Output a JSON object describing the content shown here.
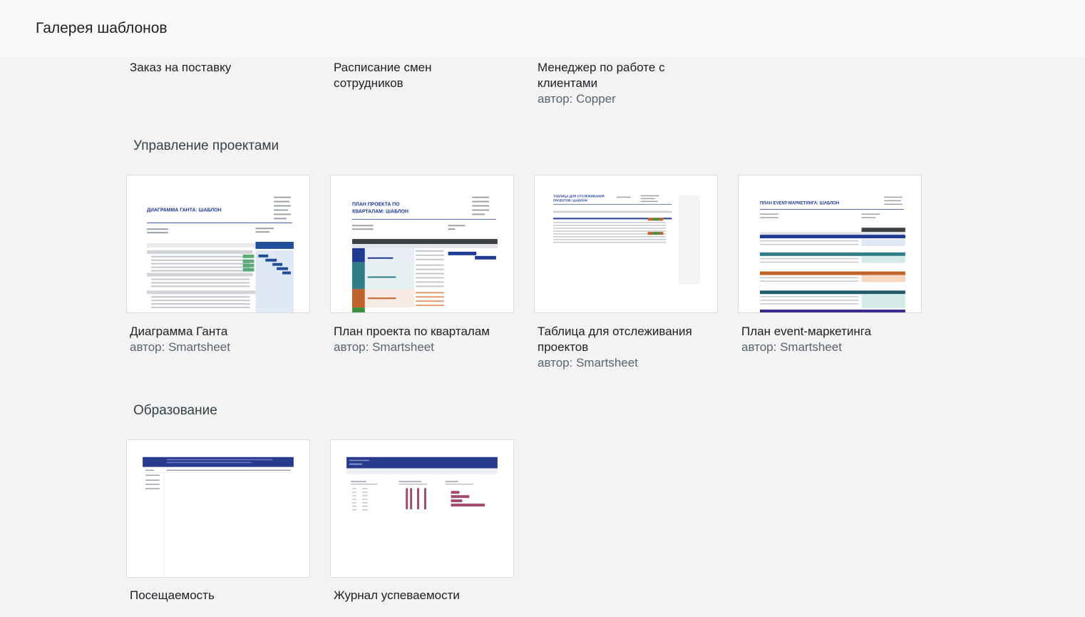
{
  "header": {
    "title": "Галерея шаблонов"
  },
  "top_row": [
    {
      "title": "Заказ на поставку",
      "author": ""
    },
    {
      "title": "Расписание смен сотрудников",
      "author": ""
    },
    {
      "title": "Менеджер по работе с клиентами",
      "author": "автор: Copper"
    }
  ],
  "sections": [
    {
      "title": "Управление проектами",
      "cards": [
        {
          "title": "Диаграмма Ганта",
          "author": "автор: Smartsheet",
          "thumb_heading": "ДИАГРАММА ГАНТА: ШАБЛОН"
        },
        {
          "title": "План проекта по кварталам",
          "author": "автор: Smartsheet",
          "thumb_heading_1": "ПЛАН ПРОЕКТА ПО",
          "thumb_heading_2": "КВАРТАЛАМ: ШАБЛОН"
        },
        {
          "title": "Таблица для отслеживания проектов",
          "author": "автор: Smartsheet",
          "thumb_heading_1": "ТАБЛИЦА ДЛЯ ОТСЛЕЖИВАНИЯ",
          "thumb_heading_2": "ПРОЕКТОВ: ШАБЛОН"
        },
        {
          "title": "План event-маркетинга",
          "author": "автор: Smartsheet",
          "thumb_heading": "ПЛАН EVENT-МАРКЕТИНГА: ШАБЛОН"
        }
      ]
    },
    {
      "title": "Образование",
      "cards": [
        {
          "title": "Посещаемость",
          "author": ""
        },
        {
          "title": "Журнал успеваемости",
          "author": ""
        }
      ]
    }
  ],
  "colors": {
    "accent_blue": "#1f3a93",
    "brand_navy": "#273a8c",
    "teal": "#2e7d87",
    "orange": "#c0622a",
    "green": "#3e8e41",
    "magenta": "#a04a6e"
  }
}
